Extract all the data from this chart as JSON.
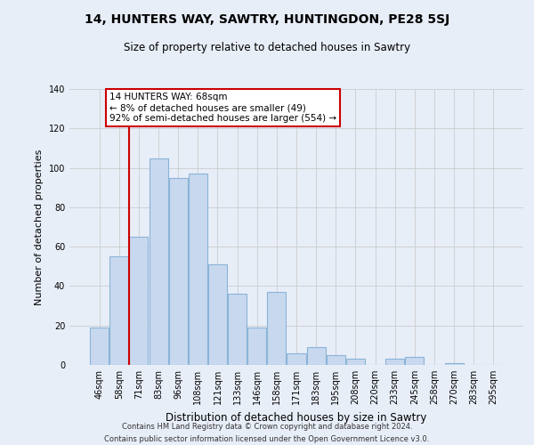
{
  "title": "14, HUNTERS WAY, SAWTRY, HUNTINGDON, PE28 5SJ",
  "subtitle": "Size of property relative to detached houses in Sawtry",
  "xlabel": "Distribution of detached houses by size in Sawtry",
  "ylabel": "Number of detached properties",
  "bar_labels": [
    "46sqm",
    "58sqm",
    "71sqm",
    "83sqm",
    "96sqm",
    "108sqm",
    "121sqm",
    "133sqm",
    "146sqm",
    "158sqm",
    "171sqm",
    "183sqm",
    "195sqm",
    "208sqm",
    "220sqm",
    "233sqm",
    "245sqm",
    "258sqm",
    "270sqm",
    "283sqm",
    "295sqm"
  ],
  "bar_values": [
    19,
    55,
    65,
    105,
    95,
    97,
    51,
    36,
    19,
    37,
    6,
    9,
    5,
    3,
    0,
    3,
    4,
    0,
    1,
    0,
    0
  ],
  "bar_color": "#c8d8ee",
  "bar_edge_color": "#8ab4d8",
  "vline_color": "#cc0000",
  "vline_x_idx": 2,
  "annotation_text": "14 HUNTERS WAY: 68sqm\n← 8% of detached houses are smaller (49)\n92% of semi-detached houses are larger (554) →",
  "annotation_box_color": "#ffffff",
  "annotation_box_edge": "#cc0000",
  "ylim": [
    0,
    140
  ],
  "yticks": [
    0,
    20,
    40,
    60,
    80,
    100,
    120,
    140
  ],
  "grid_color": "#cccccc",
  "background_color": "#e8eef8",
  "footer_line1": "Contains HM Land Registry data © Crown copyright and database right 2024.",
  "footer_line2": "Contains public sector information licensed under the Open Government Licence v3.0."
}
